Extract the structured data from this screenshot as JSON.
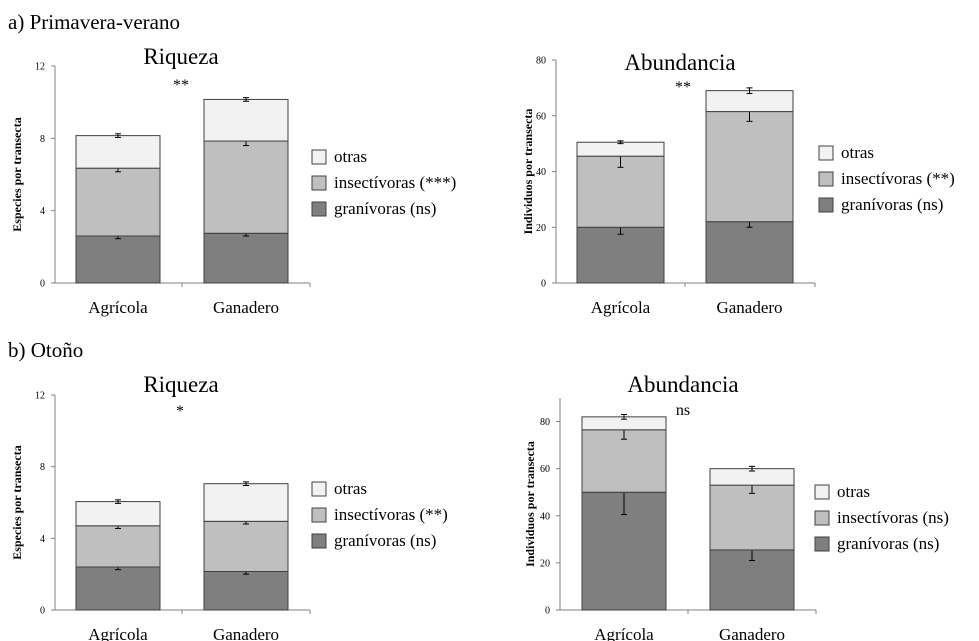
{
  "sections": [
    {
      "label": "a) Primavera-verano"
    },
    {
      "label": "b) Otoño"
    }
  ],
  "colors": {
    "granivoras": "#7f7f7f",
    "insectivoras": "#bfbfbf",
    "otras": "#f2f2f2",
    "stroke": "#404040"
  },
  "chart_data": [
    {
      "type": "bar",
      "stacked": true,
      "section": "a) Primavera-verano",
      "title": "Riqueza",
      "significance": "**",
      "ylabel": "Especies por transecta",
      "ylim": [
        0,
        12
      ],
      "yticks": [
        "0",
        "4",
        "8",
        "12"
      ],
      "categories": [
        "Agrícola",
        "Ganadero"
      ],
      "series": [
        {
          "name": "granívoras",
          "legend_label": "granívoras",
          "legend_sig": "(ns)",
          "color": "#7f7f7f",
          "values": [
            2.6,
            2.75
          ],
          "errors": [
            0.15,
            0.15
          ]
        },
        {
          "name": "insectívoras",
          "legend_label": "insectívoras",
          "legend_sig": "(***)",
          "color": "#bfbfbf",
          "values": [
            3.75,
            5.1
          ],
          "errors": [
            0.2,
            0.25
          ]
        },
        {
          "name": "otras",
          "legend_label": "otras",
          "legend_sig": "",
          "color": "#f2f2f2",
          "values": [
            1.8,
            2.3
          ],
          "errors": [
            0.1,
            0.1
          ]
        }
      ]
    },
    {
      "type": "bar",
      "stacked": true,
      "section": "a) Primavera-verano",
      "title": "Abundancia",
      "significance": "**",
      "ylabel": "Individuos por transecta",
      "ylim": [
        0,
        80
      ],
      "yticks": [
        "0",
        "20",
        "40",
        "60",
        "80"
      ],
      "categories": [
        "Agrícola",
        "Ganadero"
      ],
      "series": [
        {
          "name": "granívoras",
          "legend_label": "granívoras",
          "legend_sig": "(ns)",
          "color": "#7f7f7f",
          "values": [
            20,
            22
          ],
          "errors": [
            2.5,
            2
          ]
        },
        {
          "name": "insectívoras",
          "legend_label": "insectívoras",
          "legend_sig": "(**)",
          "color": "#bfbfbf",
          "values": [
            25.5,
            39.5
          ],
          "errors": [
            4,
            3.5
          ]
        },
        {
          "name": "otras",
          "legend_label": "otras",
          "legend_sig": "",
          "color": "#f2f2f2",
          "values": [
            5,
            7.5
          ],
          "errors": [
            0.5,
            1
          ]
        }
      ]
    },
    {
      "type": "bar",
      "stacked": true,
      "section": "b) Otoño",
      "title": "Riqueza",
      "significance": "*",
      "ylabel": "Especies por transecta",
      "ylim": [
        0,
        12
      ],
      "yticks": [
        "0",
        "4",
        "8",
        "12"
      ],
      "categories": [
        "Agrícola",
        "Ganadero"
      ],
      "series": [
        {
          "name": "granívoras",
          "legend_label": "granívoras",
          "legend_sig": "(ns)",
          "color": "#7f7f7f",
          "values": [
            2.4,
            2.15
          ],
          "errors": [
            0.15,
            0.15
          ]
        },
        {
          "name": "insectívoras",
          "legend_label": "insectívoras",
          "legend_sig": "(**)",
          "color": "#bfbfbf",
          "values": [
            2.3,
            2.8
          ],
          "errors": [
            0.15,
            0.15
          ]
        },
        {
          "name": "otras",
          "legend_label": "otras",
          "legend_sig": "",
          "color": "#f2f2f2",
          "values": [
            1.35,
            2.1
          ],
          "errors": [
            0.1,
            0.1
          ]
        }
      ]
    },
    {
      "type": "bar",
      "stacked": true,
      "section": "b) Otoño",
      "title": "Abundancia",
      "significance": "ns",
      "ylabel": "Individuos por transecta",
      "ylim": [
        0,
        90
      ],
      "yticks": [
        "0",
        "20",
        "40",
        "60",
        "80"
      ],
      "categories": [
        "Agrícola",
        "Ganadero"
      ],
      "series": [
        {
          "name": "granívoras",
          "legend_label": "granívoras",
          "legend_sig": "(ns)",
          "color": "#7f7f7f",
          "values": [
            50,
            25.5
          ],
          "errors": [
            9.5,
            4.5
          ]
        },
        {
          "name": "insectívoras",
          "legend_label": "insectívoras",
          "legend_sig": "(ns)",
          "color": "#bfbfbf",
          "values": [
            26.5,
            27.5
          ],
          "errors": [
            4,
            3.5
          ]
        },
        {
          "name": "otras",
          "legend_label": "otras",
          "legend_sig": "",
          "color": "#f2f2f2",
          "values": [
            5.5,
            7
          ],
          "errors": [
            1,
            1
          ]
        }
      ]
    }
  ]
}
